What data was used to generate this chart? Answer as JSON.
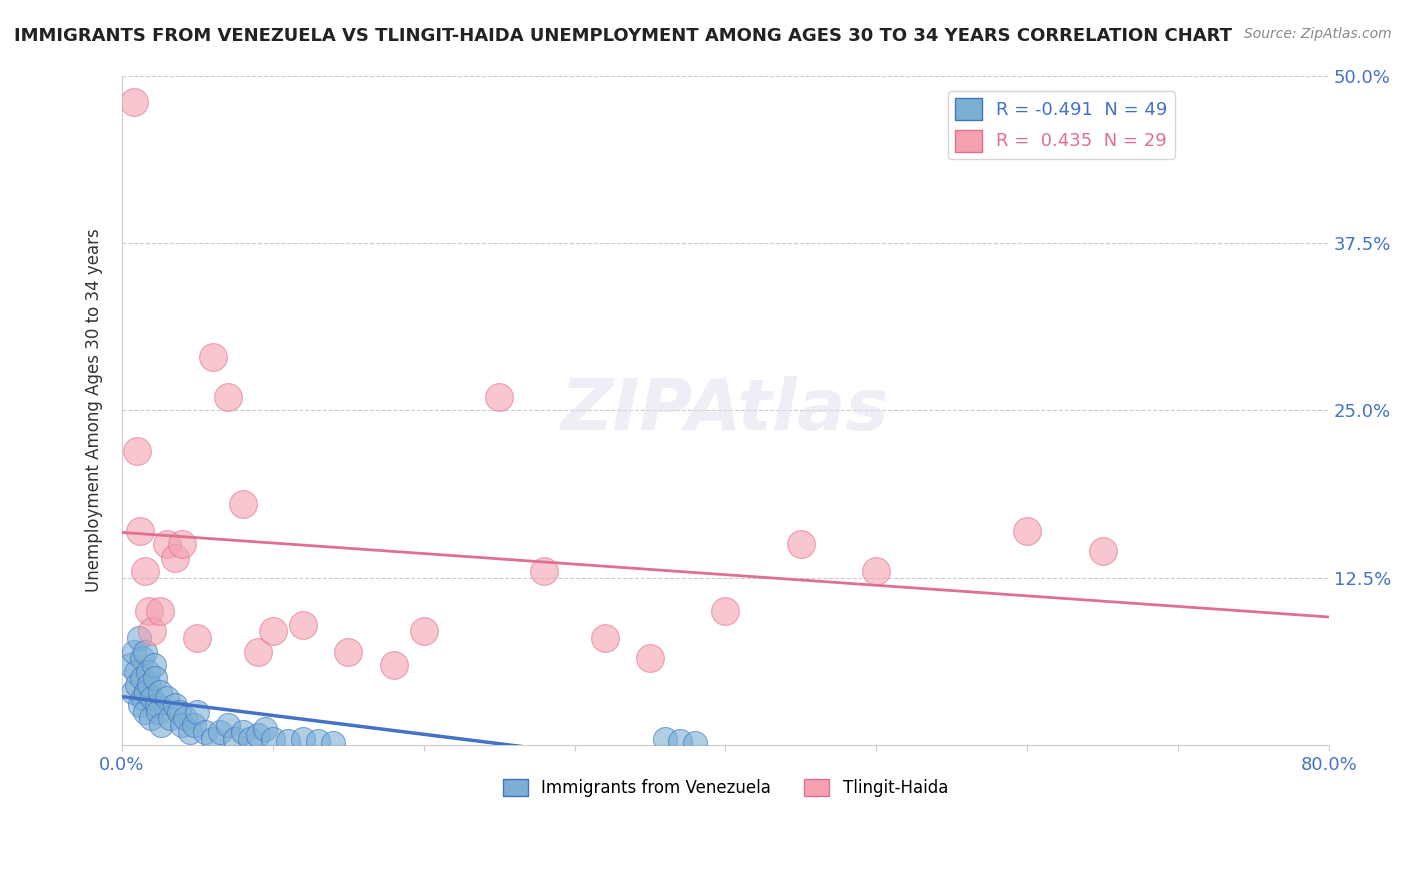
{
  "title": "IMMIGRANTS FROM VENEZUELA VS TLINGIT-HAIDA UNEMPLOYMENT AMONG AGES 30 TO 34 YEARS CORRELATION CHART",
  "source": "Source: ZipAtlas.com",
  "ylabel": "Unemployment Among Ages 30 to 34 years",
  "xlim": [
    0.0,
    0.8
  ],
  "ylim": [
    0.0,
    0.5
  ],
  "yticks": [
    0.0,
    0.125,
    0.25,
    0.375,
    0.5
  ],
  "ytick_labels": [
    "",
    "12.5%",
    "25.0%",
    "37.5%",
    "50.0%"
  ],
  "xticks": [
    0.0,
    0.1,
    0.2,
    0.3,
    0.4,
    0.5,
    0.6,
    0.7,
    0.8
  ],
  "xtick_labels": [
    "0.0%",
    "",
    "",
    "",
    "",
    "",
    "",
    "",
    "80.0%"
  ],
  "legend_blue_label": "Immigrants from Venezuela",
  "legend_pink_label": "Tlingit-Haida",
  "R_blue": -0.491,
  "N_blue": 49,
  "R_pink": 0.435,
  "N_pink": 29,
  "blue_color": "#7bafd4",
  "pink_color": "#f4a0b0",
  "trend_blue_color": "#4472c4",
  "trend_pink_color": "#e07090",
  "background_color": "#ffffff",
  "blue_scatter_x": [
    0.005,
    0.007,
    0.008,
    0.009,
    0.01,
    0.011,
    0.012,
    0.013,
    0.013,
    0.014,
    0.015,
    0.015,
    0.016,
    0.017,
    0.018,
    0.019,
    0.02,
    0.021,
    0.022,
    0.023,
    0.024,
    0.025,
    0.026,
    0.03,
    0.032,
    0.035,
    0.038,
    0.04,
    0.042,
    0.045,
    0.048,
    0.05,
    0.055,
    0.06,
    0.065,
    0.07,
    0.075,
    0.08,
    0.085,
    0.09,
    0.095,
    0.1,
    0.11,
    0.12,
    0.13,
    0.14,
    0.36,
    0.37,
    0.38
  ],
  "blue_scatter_y": [
    0.06,
    0.04,
    0.07,
    0.055,
    0.045,
    0.08,
    0.03,
    0.065,
    0.05,
    0.035,
    0.025,
    0.07,
    0.04,
    0.055,
    0.045,
    0.02,
    0.035,
    0.06,
    0.05,
    0.03,
    0.025,
    0.04,
    0.015,
    0.035,
    0.02,
    0.03,
    0.025,
    0.015,
    0.02,
    0.01,
    0.015,
    0.025,
    0.01,
    0.005,
    0.01,
    0.015,
    0.005,
    0.01,
    0.005,
    0.008,
    0.012,
    0.005,
    0.003,
    0.005,
    0.003,
    0.002,
    0.005,
    0.003,
    0.002
  ],
  "pink_scatter_x": [
    0.008,
    0.01,
    0.012,
    0.015,
    0.018,
    0.02,
    0.025,
    0.03,
    0.035,
    0.04,
    0.05,
    0.06,
    0.07,
    0.08,
    0.09,
    0.1,
    0.12,
    0.15,
    0.18,
    0.2,
    0.25,
    0.28,
    0.32,
    0.35,
    0.4,
    0.45,
    0.5,
    0.6,
    0.65
  ],
  "pink_scatter_y": [
    0.48,
    0.22,
    0.16,
    0.13,
    0.1,
    0.085,
    0.1,
    0.15,
    0.14,
    0.15,
    0.08,
    0.29,
    0.26,
    0.18,
    0.07,
    0.085,
    0.09,
    0.07,
    0.06,
    0.085,
    0.26,
    0.13,
    0.08,
    0.065,
    0.1,
    0.15,
    0.13,
    0.16,
    0.145
  ]
}
